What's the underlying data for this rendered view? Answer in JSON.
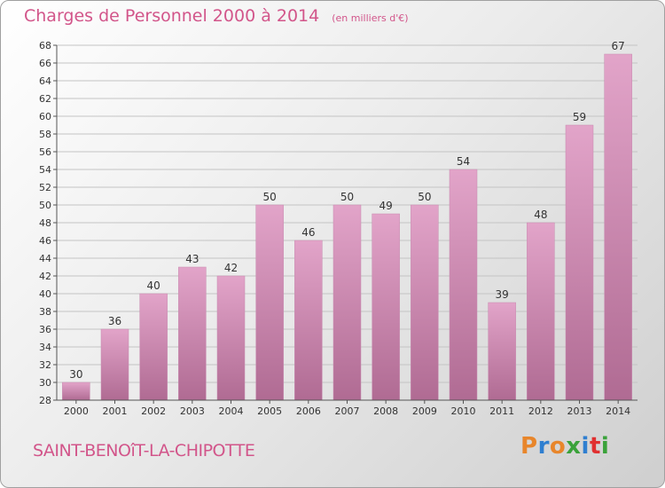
{
  "header": {
    "title": "Charges de Personnel 2000 à 2014",
    "unit": "(en milliers d'€)"
  },
  "footer": {
    "town": "SAINT-BENOîT-LA-CHIPOTTE",
    "brand": {
      "letters": [
        "P",
        "r",
        "o",
        "x",
        "i",
        "t",
        "i"
      ],
      "colors": [
        "#e8862b",
        "#2f7fd0",
        "#e8862b",
        "#3aa23a",
        "#2f7fd0",
        "#e03030",
        "#3aa23a"
      ]
    }
  },
  "colors": {
    "bar_top": "#e2a4c9",
    "bar_bottom": "#b06b93",
    "text": "#333333",
    "title": "#d2558a"
  },
  "chart_data": {
    "type": "bar",
    "categories": [
      "2000",
      "2001",
      "2002",
      "2003",
      "2004",
      "2005",
      "2006",
      "2007",
      "2008",
      "2009",
      "2010",
      "2011",
      "2012",
      "2013",
      "2014"
    ],
    "values": [
      30,
      36,
      40,
      43,
      42,
      50,
      46,
      50,
      49,
      50,
      54,
      39,
      48,
      59,
      67
    ],
    "ylim": [
      28,
      68
    ],
    "yticks": [
      28,
      30,
      32,
      34,
      36,
      38,
      40,
      42,
      44,
      46,
      48,
      50,
      52,
      54,
      56,
      58,
      60,
      62,
      64,
      66,
      68
    ],
    "grid": true
  }
}
